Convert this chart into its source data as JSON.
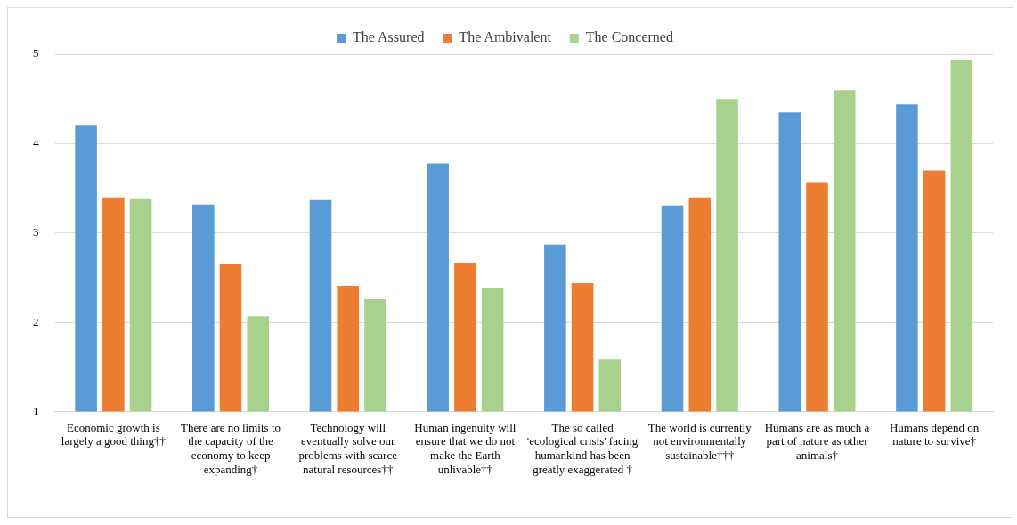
{
  "chart_data": {
    "type": "bar",
    "categories": [
      "Economic growth is largely a good thing††",
      "There are no limits to the capacity of the economy to keep expanding†",
      "Technology will eventually solve our problems with scarce natural resources††",
      "Human ingenuity will ensure that we do not make the Earth unlivable††",
      "The so called 'ecological crisis' facing humankind has been greatly exaggerated †",
      "The world is currently not environmentally sustainable†††",
      "Humans are as much a part of nature as other animals†",
      "Humans depend on nature to survive†"
    ],
    "series": [
      {
        "name": "The Assured",
        "color": "#5b9bd5",
        "values": [
          4.2,
          3.32,
          3.37,
          3.78,
          2.87,
          3.31,
          4.35,
          4.44
        ]
      },
      {
        "name": "The Ambivalent",
        "color": "#ed7d31",
        "values": [
          3.4,
          2.65,
          2.41,
          2.66,
          2.44,
          3.4,
          3.56,
          3.7
        ]
      },
      {
        "name": "The Concerned",
        "color": "#a9d18e",
        "values": [
          3.38,
          2.07,
          2.26,
          2.38,
          1.58,
          4.5,
          4.6,
          4.94
        ]
      }
    ],
    "ylim": [
      1,
      5
    ],
    "yticks": [
      1,
      2,
      3,
      4,
      5
    ],
    "grid": "y",
    "legend": "top"
  }
}
